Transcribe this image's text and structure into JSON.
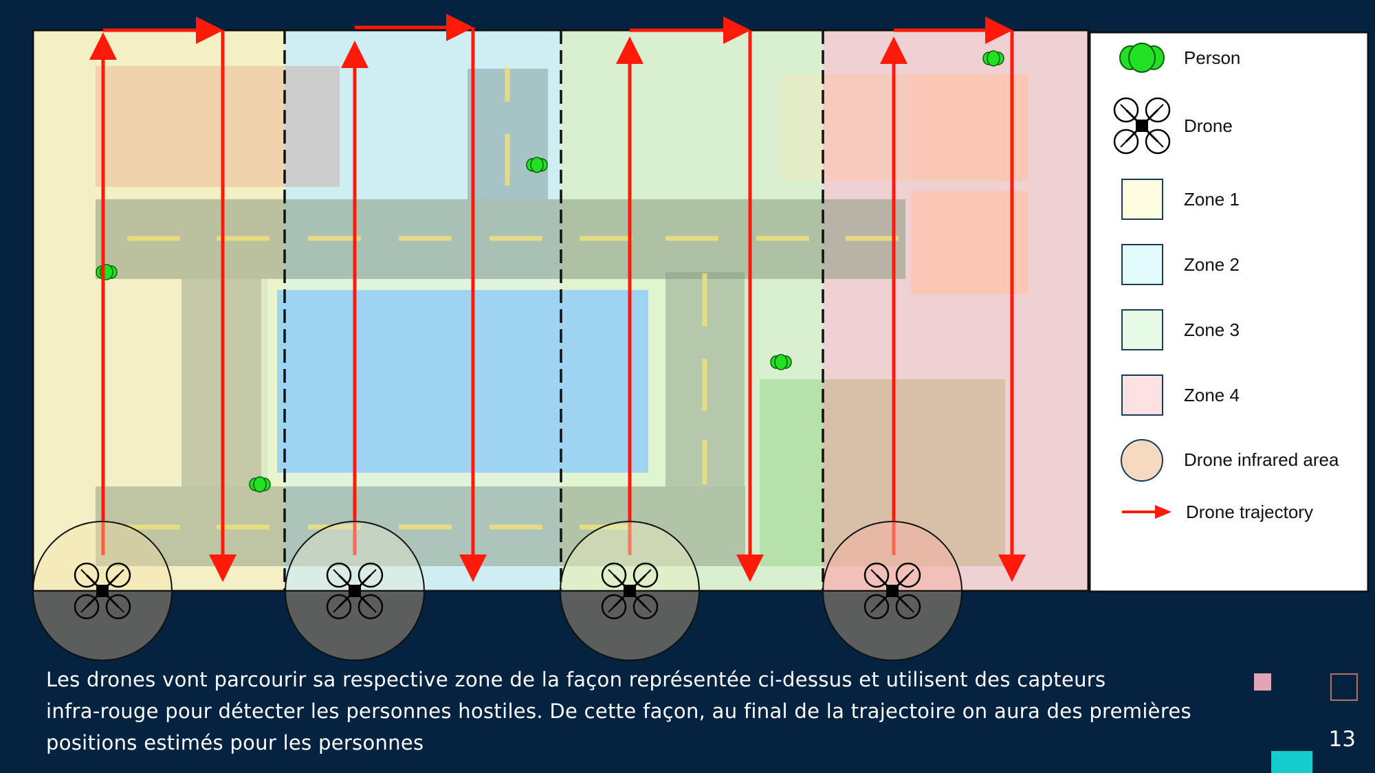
{
  "legend": {
    "items": [
      {
        "icon": "person-icon",
        "label": "Person"
      },
      {
        "icon": "drone-icon",
        "label": "Drone"
      },
      {
        "icon": "zone-swatch",
        "label": "Zone 1",
        "color": "#fdfce0"
      },
      {
        "icon": "zone-swatch",
        "label": "Zone 2",
        "color": "#e2fbfd"
      },
      {
        "icon": "zone-swatch",
        "label": "Zone 3",
        "color": "#e5fbe5"
      },
      {
        "icon": "zone-swatch",
        "label": "Zone 4",
        "color": "#fde1e3"
      },
      {
        "icon": "infrared-area-swatch",
        "label": "Drone infrared area",
        "color": "#f5d9c0"
      },
      {
        "icon": "trajectory-arrow-icon",
        "label": "Drone trajectory",
        "color": "#ff0000"
      }
    ]
  },
  "zones": [
    {
      "name": "Zone 1",
      "color": "#f5efc6"
    },
    {
      "name": "Zone 2",
      "color": "#cfeef4"
    },
    {
      "name": "Zone 3",
      "color": "#d8efd0"
    },
    {
      "name": "Zone 4",
      "color": "#efd0d3"
    }
  ],
  "colors": {
    "background": "#032340",
    "trajectory": "#ff1a0a",
    "person": "#22e022",
    "road": "#8a9a80",
    "water": "#9ed3f2"
  },
  "caption": {
    "line1": "Les drones vont parcourir sa respective zone de la façon représentée ci-dessus et utilisent des capteurs",
    "line2": "infra-rouge pour détecter les personnes hostiles. De cette façon, au final de la trajectoire on aura des premières",
    "line3": "positions estimés pour les personnes"
  },
  "page_number": "13"
}
